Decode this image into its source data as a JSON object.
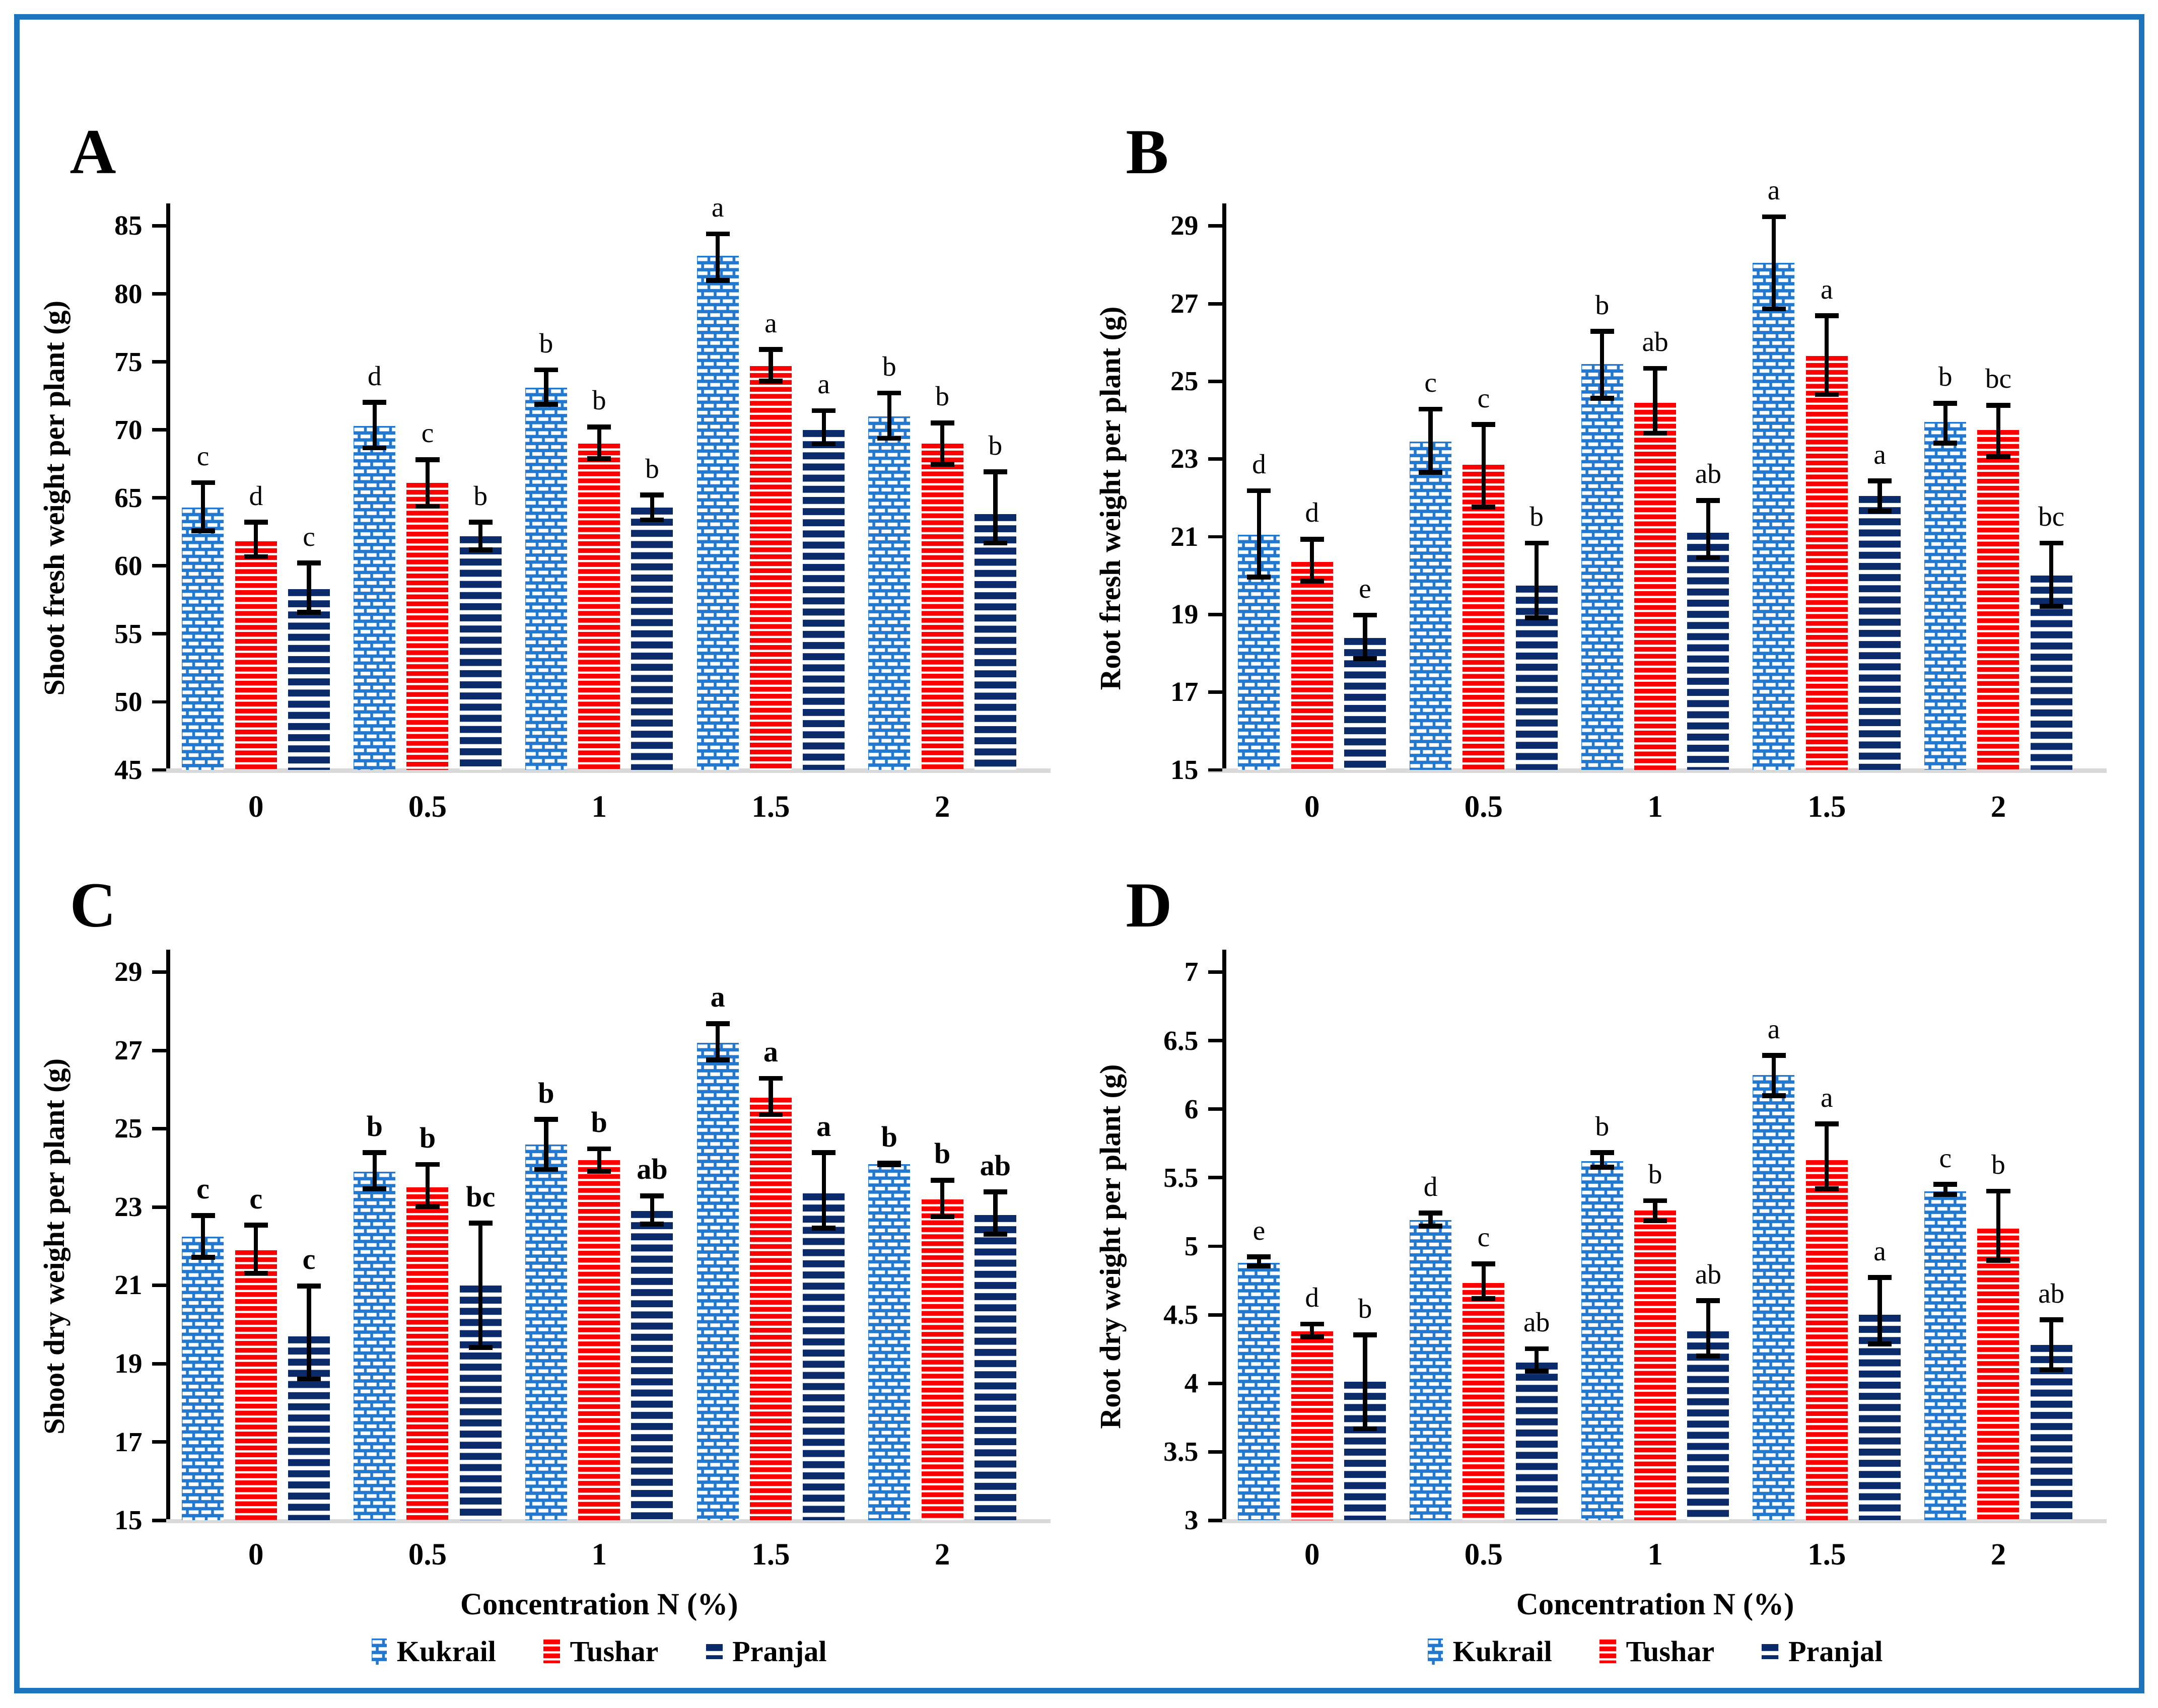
{
  "figure": {
    "frame_color": "#1C75BC",
    "x_axis_title": "Concentration N (%)",
    "categories": [
      "0",
      "0.5",
      "1",
      "1.5",
      "2"
    ],
    "series_colors": {
      "kukrail": "#2277CE",
      "tushar": "#FA0000",
      "pranjal": "#0A2A6A"
    },
    "error_bar_color": "#000000",
    "baseline_color": "#D9D9D9",
    "legend": [
      {
        "name": "Kukrail",
        "pattern": "blue-white-dashed-brick"
      },
      {
        "name": "Tushar",
        "pattern": "red-white-horizontal-stripes"
      },
      {
        "name": "Pranjal",
        "pattern": "navy-white-horizontal-stripes"
      }
    ]
  },
  "chart_data": [
    {
      "panel": "A",
      "type": "bar",
      "ylabel": "Shoot fresh weight per plant (g)",
      "xlabel": "",
      "ylim": [
        45,
        85
      ],
      "ytick_step": 5,
      "grid": false,
      "legend_position": "none",
      "categories": [
        "0",
        "0.5",
        "1",
        "1.5",
        "2"
      ],
      "series": [
        {
          "name": "Kukrail",
          "values": [
            64.3,
            70.3,
            73.1,
            82.8,
            71.0
          ],
          "errors": [
            [
              62.4,
              66.3
            ],
            [
              68.5,
              72.2
            ],
            [
              71.7,
              74.6
            ],
            [
              80.8,
              84.6
            ],
            [
              69.2,
              72.9
            ]
          ],
          "letters": [
            "c",
            "d",
            "b",
            "a",
            "b"
          ]
        },
        {
          "name": "Tushar",
          "values": [
            61.8,
            66.1,
            69.0,
            74.7,
            69.0
          ],
          "errors": [
            [
              60.5,
              63.4
            ],
            [
              64.2,
              68.0
            ],
            [
              67.7,
              70.4
            ],
            [
              73.4,
              76.1
            ],
            [
              67.3,
              70.7
            ]
          ],
          "letters": [
            "d",
            "c",
            "b",
            "a",
            "b"
          ]
        },
        {
          "name": "Pranjal",
          "values": [
            58.3,
            62.2,
            64.3,
            70.0,
            63.8
          ],
          "errors": [
            [
              56.4,
              60.4
            ],
            [
              61.0,
              63.4
            ],
            [
              63.2,
              65.4
            ],
            [
              68.8,
              71.6
            ],
            [
              61.5,
              67.1
            ]
          ],
          "letters": [
            "c",
            "b",
            "b",
            "a",
            "b"
          ]
        }
      ]
    },
    {
      "panel": "B",
      "type": "bar",
      "ylabel": "Root fresh weight per plant (g)",
      "xlabel": "",
      "ylim": [
        15,
        29
      ],
      "ytick_step": 2,
      "grid": false,
      "legend_position": "none",
      "categories": [
        "0",
        "0.5",
        "1",
        "1.5",
        "2"
      ],
      "series": [
        {
          "name": "Kukrail",
          "values": [
            21.05,
            23.45,
            25.45,
            28.05,
            23.95
          ],
          "errors": [
            [
              19.9,
              22.25
            ],
            [
              22.6,
              24.35
            ],
            [
              24.5,
              26.35
            ],
            [
              26.8,
              29.3
            ],
            [
              23.35,
              24.5
            ]
          ],
          "letters": [
            "d",
            "c",
            "b",
            "a",
            "b"
          ]
        },
        {
          "name": "Tushar",
          "values": [
            20.35,
            22.85,
            24.45,
            25.65,
            23.75
          ],
          "errors": [
            [
              19.8,
              21.0
            ],
            [
              21.7,
              23.95
            ],
            [
              23.6,
              25.4
            ],
            [
              24.6,
              26.75
            ],
            [
              23.0,
              24.45
            ]
          ],
          "letters": [
            "d",
            "c",
            "ab",
            "a",
            "bc"
          ]
        },
        {
          "name": "Pranjal",
          "values": [
            18.4,
            19.75,
            21.1,
            22.05,
            20.0
          ],
          "errors": [
            [
              17.8,
              19.05
            ],
            [
              18.85,
              20.9
            ],
            [
              20.4,
              22.0
            ],
            [
              21.6,
              22.5
            ],
            [
              19.15,
              20.9
            ]
          ],
          "letters": [
            "e",
            "b",
            "ab",
            "a",
            "bc"
          ]
        }
      ]
    },
    {
      "panel": "C",
      "type": "bar",
      "ylabel": "Shoot dry weight per plant (g)",
      "xlabel": "Concentration N (%)",
      "ylim": [
        15,
        29
      ],
      "ytick_step": 2,
      "grid": false,
      "legend_position": "bottom",
      "categories": [
        "0",
        "0.5",
        "1",
        "1.5",
        "2"
      ],
      "series": [
        {
          "name": "Kukrail",
          "values": [
            22.25,
            23.9,
            24.6,
            27.2,
            24.1
          ],
          "errors": [
            [
              21.65,
              22.85
            ],
            [
              23.4,
              24.45
            ],
            [
              23.9,
              25.3
            ],
            [
              26.7,
              27.75
            ],
            [
              24.02,
              24.18
            ]
          ],
          "letters": [
            "c",
            "b",
            "b",
            "a",
            "b"
          ]
        },
        {
          "name": "Tushar",
          "values": [
            21.9,
            23.5,
            24.2,
            25.8,
            23.2
          ],
          "errors": [
            [
              21.25,
              22.6
            ],
            [
              22.95,
              24.15
            ],
            [
              23.85,
              24.55
            ],
            [
              25.3,
              26.35
            ],
            [
              22.7,
              23.75
            ]
          ],
          "letters": [
            "c",
            "b",
            "b",
            "a",
            "b"
          ]
        },
        {
          "name": "Pranjal",
          "values": [
            19.7,
            21.0,
            22.9,
            23.35,
            22.8
          ],
          "errors": [
            [
              18.55,
              21.05
            ],
            [
              19.35,
              22.65
            ],
            [
              22.5,
              23.35
            ],
            [
              22.4,
              24.45
            ],
            [
              22.25,
              23.45
            ]
          ],
          "letters": [
            "c",
            "bc",
            "ab",
            "a",
            "ab"
          ]
        }
      ]
    },
    {
      "panel": "D",
      "type": "bar",
      "ylabel": "Root dry weight per plant (g)",
      "xlabel": "Concentration N (%)",
      "ylim": [
        3,
        7
      ],
      "ytick_step": 0.5,
      "grid": false,
      "legend_position": "bottom",
      "categories": [
        "0",
        "0.5",
        "1",
        "1.5",
        "2"
      ],
      "series": [
        {
          "name": "Kukrail",
          "values": [
            4.88,
            5.19,
            5.62,
            6.25,
            5.4
          ],
          "errors": [
            [
              4.84,
              4.94
            ],
            [
              5.13,
              5.26
            ],
            [
              5.56,
              5.7
            ],
            [
              6.08,
              6.41
            ],
            [
              5.36,
              5.47
            ]
          ],
          "letters": [
            "e",
            "d",
            "b",
            "a",
            "c"
          ]
        },
        {
          "name": "Tushar",
          "values": [
            4.38,
            4.73,
            5.26,
            5.63,
            5.13
          ],
          "errors": [
            [
              4.32,
              4.45
            ],
            [
              4.6,
              4.89
            ],
            [
              5.17,
              5.35
            ],
            [
              5.4,
              5.91
            ],
            [
              4.88,
              5.42
            ]
          ],
          "letters": [
            "d",
            "c",
            "b",
            "a",
            "b"
          ]
        },
        {
          "name": "Pranjal",
          "values": [
            4.01,
            4.15,
            4.38,
            4.5,
            4.28
          ],
          "errors": [
            [
              3.65,
              4.37
            ],
            [
              4.07,
              4.27
            ],
            [
              4.18,
              4.62
            ],
            [
              4.27,
              4.79
            ],
            [
              4.08,
              4.48
            ]
          ],
          "letters": [
            "b",
            "ab",
            "ab",
            "a",
            "ab"
          ]
        }
      ]
    }
  ]
}
